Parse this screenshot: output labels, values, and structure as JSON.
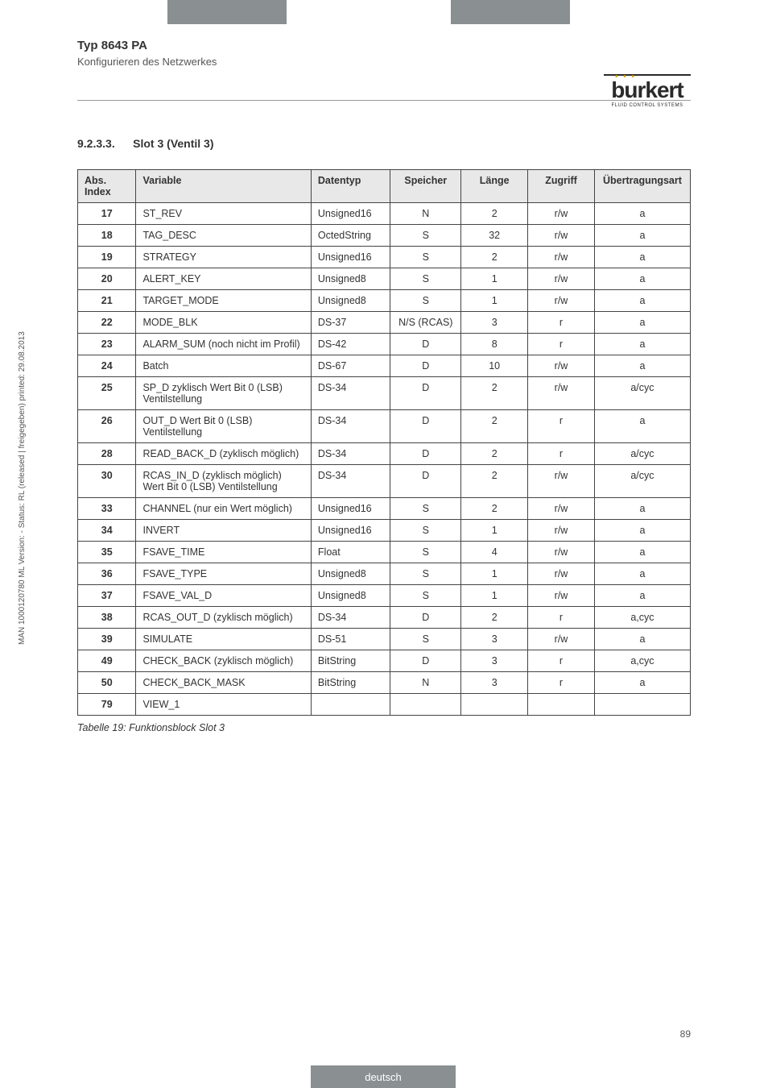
{
  "header": {
    "typ": "Typ 8643 PA",
    "subtitle": "Konfigurieren des Netzwerkes",
    "logo_word": "burkert",
    "logo_sub": "FLUID CONTROL SYSTEMS"
  },
  "section": {
    "number": "9.2.3.3.",
    "title": "Slot 3 (Ventil 3)"
  },
  "table": {
    "headers": [
      "Abs. Index",
      "Variable",
      "Datentyp",
      "Speicher",
      "Länge",
      "Zugriff",
      "Übertragungsart"
    ],
    "rows": [
      {
        "idx": "17",
        "var": "ST_REV",
        "dt": "Unsigned16",
        "sp": "N",
        "len": "2",
        "acc": "r/w",
        "tx": "a"
      },
      {
        "idx": "18",
        "var": "TAG_DESC",
        "dt": "OctedString",
        "sp": "S",
        "len": "32",
        "acc": "r/w",
        "tx": "a"
      },
      {
        "idx": "19",
        "var": "STRATEGY",
        "dt": "Unsigned16",
        "sp": "S",
        "len": "2",
        "acc": "r/w",
        "tx": "a"
      },
      {
        "idx": "20",
        "var": "ALERT_KEY",
        "dt": "Unsigned8",
        "sp": "S",
        "len": "1",
        "acc": "r/w",
        "tx": "a"
      },
      {
        "idx": "21",
        "var": "TARGET_MODE",
        "dt": "Unsigned8",
        "sp": "S",
        "len": "1",
        "acc": "r/w",
        "tx": "a"
      },
      {
        "idx": "22",
        "var": "MODE_BLK",
        "dt": "DS-37",
        "sp": "N/S (RCAS)",
        "len": "3",
        "acc": "r",
        "tx": "a"
      },
      {
        "idx": "23",
        "var": "ALARM_SUM (noch nicht im Profil)",
        "dt": "DS-42",
        "sp": "D",
        "len": "8",
        "acc": "r",
        "tx": "a"
      },
      {
        "idx": "24",
        "var": "Batch",
        "dt": "DS-67",
        "sp": "D",
        "len": "10",
        "acc": "r/w",
        "tx": "a"
      },
      {
        "idx": "25",
        "var": "SP_D zyklisch Wert Bit 0 (LSB) Ventilstellung",
        "dt": "DS-34",
        "sp": "D",
        "len": "2",
        "acc": "r/w",
        "tx": "a/cyc"
      },
      {
        "idx": "26",
        "var": "OUT_D Wert Bit 0 (LSB) Ventilstellung",
        "dt": "DS-34",
        "sp": "D",
        "len": "2",
        "acc": "r",
        "tx": "a"
      },
      {
        "idx": "28",
        "var": "READ_BACK_D (zyklisch möglich)",
        "dt": "DS-34",
        "sp": "D",
        "len": "2",
        "acc": "r",
        "tx": "a/cyc"
      },
      {
        "idx": "30",
        "var": "RCAS_IN_D (zyklisch möglich) Wert Bit 0 (LSB) Ventilstellung",
        "dt": "DS-34",
        "sp": "D",
        "len": "2",
        "acc": "r/w",
        "tx": "a/cyc"
      },
      {
        "idx": "33",
        "var": "CHANNEL (nur ein Wert möglich)",
        "dt": "Unsigned16",
        "sp": "S",
        "len": "2",
        "acc": "r/w",
        "tx": "a"
      },
      {
        "idx": "34",
        "var": "INVERT",
        "dt": "Unsigned16",
        "sp": "S",
        "len": "1",
        "acc": "r/w",
        "tx": "a"
      },
      {
        "idx": "35",
        "var": "FSAVE_TIME",
        "dt": "Float",
        "sp": "S",
        "len": "4",
        "acc": "r/w",
        "tx": "a"
      },
      {
        "idx": "36",
        "var": "FSAVE_TYPE",
        "dt": "Unsigned8",
        "sp": "S",
        "len": "1",
        "acc": "r/w",
        "tx": "a"
      },
      {
        "idx": "37",
        "var": "FSAVE_VAL_D",
        "dt": "Unsigned8",
        "sp": "S",
        "len": "1",
        "acc": "r/w",
        "tx": "a"
      },
      {
        "idx": "38",
        "var": "RCAS_OUT_D (zyklisch möglich)",
        "dt": "DS-34",
        "sp": "D",
        "len": "2",
        "acc": "r",
        "tx": "a,cyc"
      },
      {
        "idx": "39",
        "var": "SIMULATE",
        "dt": "DS-51",
        "sp": "S",
        "len": "3",
        "acc": "r/w",
        "tx": "a"
      },
      {
        "idx": "49",
        "var": "CHECK_BACK (zyklisch möglich)",
        "dt": "BitString",
        "sp": "D",
        "len": "3",
        "acc": "r",
        "tx": "a,cyc"
      },
      {
        "idx": "50",
        "var": "CHECK_BACK_MASK",
        "dt": "BitString",
        "sp": "N",
        "len": "3",
        "acc": "r",
        "tx": "a"
      },
      {
        "idx": "79",
        "var": "VIEW_1",
        "dt": "",
        "sp": "",
        "len": "",
        "acc": "",
        "tx": ""
      }
    ]
  },
  "caption": "Tabelle 19: Funktionsblock Slot 3",
  "sidetext": "MAN 1000120780 ML Version: - Status: RL (released | freigegeben) printed: 29.08.2013",
  "pagenum": "89",
  "footer": {
    "lang": "deutsch"
  },
  "col_widths": [
    "70px",
    "210px",
    "95px",
    "85px",
    "80px",
    "80px",
    "90px"
  ]
}
